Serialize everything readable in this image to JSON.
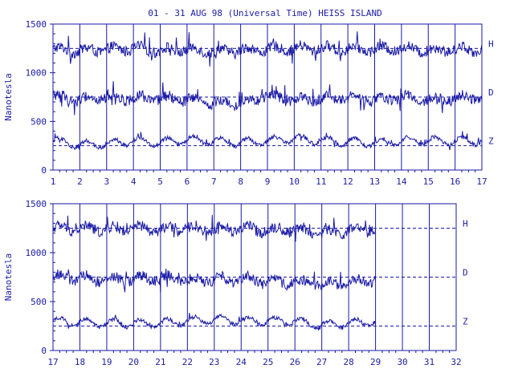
{
  "title": "01 - 31 AUG 98 (Universal Time) HEISS ISLAND",
  "colors": {
    "ink": "#1a1aa6",
    "background": "#ffffff"
  },
  "chart_data": [
    {
      "type": "line",
      "ylabel": "Nanotesla",
      "xlim": [
        1,
        17
      ],
      "ylim": [
        0,
        1500
      ],
      "x_ticks": [
        "1",
        "2",
        "3",
        "4",
        "5",
        "6",
        "7",
        "8",
        "9",
        "10",
        "11",
        "12",
        "13",
        "14",
        "15",
        "16",
        "17"
      ],
      "y_ticks": [
        "0",
        "500",
        "1000",
        "1500"
      ],
      "grid": "vertical lines at each day",
      "series": [
        {
          "name": "H",
          "baseline": 1250,
          "values": [
            1240,
            1230,
            1240,
            1250,
            1230,
            1240,
            1220,
            1230,
            1240,
            1250,
            1250,
            1240,
            1240,
            1250,
            1230,
            1240,
            1240
          ]
        },
        {
          "name": "D",
          "baseline": 750,
          "values": [
            760,
            720,
            750,
            740,
            730,
            720,
            690,
            700,
            760,
            720,
            740,
            740,
            720,
            750,
            720,
            740,
            750
          ]
        },
        {
          "name": "Z",
          "baseline": 250,
          "values": [
            300,
            260,
            270,
            300,
            280,
            310,
            300,
            280,
            300,
            320,
            300,
            290,
            280,
            300,
            300,
            300,
            300
          ]
        }
      ]
    },
    {
      "type": "line",
      "ylabel": "Nanotesla",
      "xlim": [
        17,
        32
      ],
      "ylim": [
        0,
        1500
      ],
      "x_ticks": [
        "17",
        "18",
        "19",
        "20",
        "21",
        "22",
        "23",
        "24",
        "25",
        "26",
        "27",
        "28",
        "29",
        "30",
        "31",
        "32"
      ],
      "y_ticks": [
        "0",
        "500",
        "1000",
        "1500"
      ],
      "grid": "vertical lines at each day",
      "series": [
        {
          "name": "H",
          "baseline": 1250,
          "values": [
            1250,
            1250,
            1240,
            1250,
            1230,
            1250,
            1240,
            1250,
            1230,
            1240,
            1200,
            1220,
            1240,
            null,
            1250,
            null
          ]
        },
        {
          "name": "D",
          "baseline": 750,
          "values": [
            750,
            740,
            720,
            730,
            740,
            720,
            720,
            740,
            700,
            700,
            680,
            700,
            720,
            null,
            740,
            null
          ]
        },
        {
          "name": "Z",
          "baseline": 250,
          "values": [
            300,
            290,
            280,
            280,
            280,
            300,
            320,
            300,
            300,
            300,
            260,
            280,
            300,
            null,
            300,
            null
          ]
        }
      ]
    }
  ]
}
